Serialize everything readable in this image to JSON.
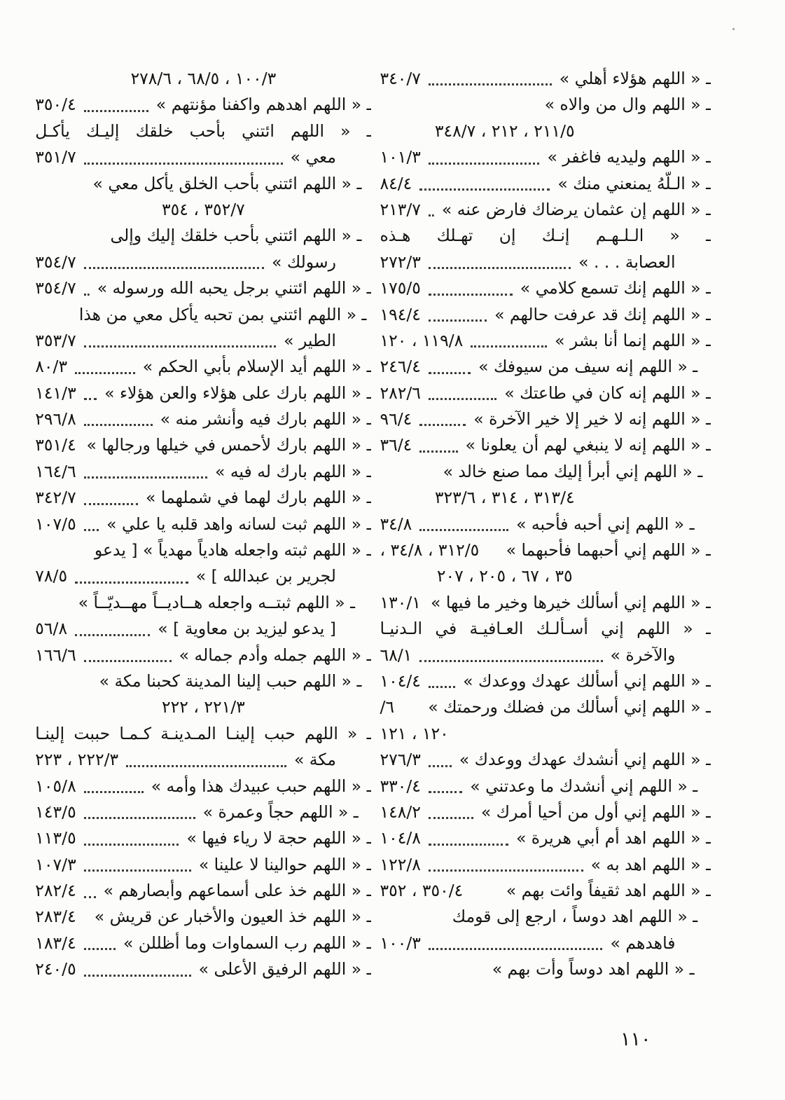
{
  "page": {
    "number": "١١٠"
  },
  "columns": {
    "right": {
      "lines": [
        {
          "text": "ـ « اللهم هؤلاء أهلي »",
          "leaders": true,
          "ref": "٣٤٠/٧"
        },
        {
          "text": "ـ « اللهم وال من والاه »"
        },
        {
          "ref": "٢١١/٥ ، ٢١٢ ، ٣٤٨/٧",
          "align": "center-left"
        },
        {
          "text": "ـ « اللهم وليديه فاغفر »",
          "leaders": true,
          "ref": "١٠١/٣"
        },
        {
          "text": "ـ « الـلَّهُ يمنعني منك »",
          "leaders": true,
          "ref": "٨٤/٤"
        },
        {
          "text": "ـ « اللهم إن عثمان يرضاك فارض عنه »",
          "leaders": true,
          "ref": "٢١٣/٧"
        },
        {
          "text": "ـ « الـلـهـم إنـك إن تهـلك هـذه",
          "justify": true
        },
        {
          "text": "العصابة . . . »",
          "cont": true,
          "leaders": true,
          "ref": "٢٧٢/٣"
        },
        {
          "text": "ـ « اللهم إنك تسمع كلامي »",
          "leaders": true,
          "ref": "١٧٥/٥"
        },
        {
          "text": "ـ « اللهم إنك قد عرفت حالهم »",
          "leaders": true,
          "ref": "١٩٤/٤"
        },
        {
          "text": "ـ « اللهم إنما أنا بشر »",
          "leaders": true,
          "ref": "١١٩/٨ ، ١٢٠"
        },
        {
          "text": "ـ « اللهم إنه سيف من سيوفك »",
          "leaders": true,
          "ref": "٢٤٦/٤",
          "indent": 0.8
        },
        {
          "text": "ـ « اللهم إنه كان في طاعتك »",
          "leaders": true,
          "ref": "٢٨٢/٦"
        },
        {
          "text": "ـ « اللهم إنه لا خير إلا خير الآخرة »",
          "leaders": true,
          "ref": "٩٦/٤"
        },
        {
          "text": "ـ « اللهم إنه لا ينبغي لهم أن يعلونا »",
          "leaders": true,
          "ref": "٣٦/٤"
        },
        {
          "text": "ـ « اللهم إني أبرأ إليك مما صنع خالد »",
          "indent": 0.5
        },
        {
          "ref": "٣١٣/٤ ، ٣١٤ ، ٣٢٣/٦",
          "align": "center-left"
        },
        {
          "text": "ـ « اللهم إني أحبه فأحبه »",
          "leaders": true,
          "ref": "٣٤/٨",
          "indent": 1
        },
        {
          "text": "ـ « اللهم إني أحبهما فأحبهما »",
          "ref": "٣١٢/٥ ، ٣٤/٨ ،"
        },
        {
          "ref": "٣٥ ، ٦٧ ، ٢٠٥ ، ٢٠٧",
          "align": "center-left"
        },
        {
          "text": "ـ « اللهم إني أسألك خيرها وخير ما فيها »",
          "ref": "١٣٠/١"
        },
        {
          "text": "ـ « اللهم إني أسـألـك العـافيـة في الـدنيـا",
          "justify": true
        },
        {
          "text": "والآخرة »",
          "cont": true,
          "leaders": true,
          "ref": "٦٨/١"
        },
        {
          "text": "ـ « اللهم إني أسألك عهدك ووعدك »",
          "leaders": true,
          "ref": "١٠٤/٤"
        },
        {
          "text": "ـ « اللهم إني أسألك من فضلك ورحمتك »",
          "ref": "٦/"
        },
        {
          "ref": "١٢٠ ، ١٢١",
          "align": "left"
        },
        {
          "text": "ـ « اللهم إني أنشدك عهدك ووعدك »",
          "leaders": true,
          "ref": "٢٧٦/٣"
        },
        {
          "text": "ـ « اللهم إني أنشدك ما وعدتني »",
          "leaders": true,
          "ref": "٣٣٠/٤",
          "indent": 0.8
        },
        {
          "text": "ـ « اللهم إني أول من أحيا أمرك »",
          "leaders": true,
          "ref": "١٤٨/٢"
        },
        {
          "text": "ـ « اللهم اهد أم أبي هريرة »",
          "leaders": true,
          "ref": "١٠٤/٨"
        },
        {
          "text": "ـ « اللهم اهد به »",
          "leaders": true,
          "ref": "١٢٢/٨"
        },
        {
          "text": "ـ « اللهم اهد ثقيفاً وائت بهم »",
          "ref": "٣٥٠/٤ ، ٣٥٢"
        },
        {
          "text": "ـ « اللهم اهد دوساً ، ارجع إلى قومك",
          "indent": 0.8
        },
        {
          "text": "فاهدهم »",
          "cont": true,
          "leaders": true,
          "ref": "١٠٠/٣"
        },
        {
          "text": "ـ « اللهم اهد دوساً وأت بهم »",
          "indent": 1
        }
      ]
    },
    "left": {
      "lines": [
        {
          "ref": "١٠٠/٣ ، ٦٨/٥ ، ٢٧٨/٦",
          "align": "center"
        },
        {
          "text": "ـ « اللهم اهدهم واكفنا مؤنتهم »",
          "leaders": true,
          "ref": "٣٥٠/٤"
        },
        {
          "text": "ـ « اللهم ائتني بأحب خلقك إليـك يأكـل",
          "justify": true
        },
        {
          "text": "معي »",
          "cont": true,
          "leaders": true,
          "ref": "٣٥١/٧"
        },
        {
          "text": "ـ « اللهم ائتني بأحب الخلق يأكل معي »",
          "indent": 0.6
        },
        {
          "ref": "٣٥٢/٧ ، ٣٥٤",
          "align": "center"
        },
        {
          "text": "ـ « اللهم ائتني بأحب خلقك إليك وإلى",
          "indent": 0.6
        },
        {
          "text": "رسولك »",
          "cont": true,
          "leaders": true,
          "ref": "٣٥٤/٧"
        },
        {
          "text": "ـ « اللهم ائتني برجل يحبه الله ورسوله »",
          "leaders": true,
          "ref": "٣٥٤/٧"
        },
        {
          "text": "ـ « اللهم ائتني بمن تحبه يأكل معي من هذا",
          "indent": 0.3
        },
        {
          "text": "الطير »",
          "cont": true,
          "leaders": true,
          "ref": "٣٥٣/٧"
        },
        {
          "text": "ـ « اللهم أيد الإسلام بأبي الحكم »",
          "leaders": true,
          "ref": "٨٠/٣"
        },
        {
          "text": "ـ « اللهم بارك على هؤلاء والعن هؤلاء »",
          "leaders": true,
          "ref": "١٤١/٣"
        },
        {
          "text": "ـ « اللهم بارك فيه وأنشر منه »",
          "leaders": true,
          "ref": "٢٩٦/٨"
        },
        {
          "text": "ـ « اللهم بارك لأحمس في خيلها ورجالها »",
          "ref": "٣٥١/٤"
        },
        {
          "text": "ـ « اللهم بارك له فيه »",
          "leaders": true,
          "ref": "١٦٤/٦"
        },
        {
          "text": "ـ « اللهم بارك لهما في شملهما »",
          "leaders": true,
          "ref": "٣٤٢/٧"
        },
        {
          "text": "ـ « اللهم ثبت لسانه واهد قلبه يا علي »",
          "leaders": true,
          "ref": "١٠٧/٥"
        },
        {
          "text": "ـ « اللهم ثبته واجعله هادياً مهدياً » [ يدعو"
        },
        {
          "text": "لجرير بن عبدالله ] »",
          "cont": true,
          "leaders": true,
          "ref": "٧٨/٥"
        },
        {
          "text": "ـ « اللهم ثبتــه واجعله هــاديــاً مهــديّــاً »",
          "indent": 1
        },
        {
          "text": "[ يدعو ليزيد بن معاوية ] »",
          "cont": true,
          "leaders": true,
          "ref": "٥٦/٨"
        },
        {
          "text": "ـ « اللهم جمله وأدم جماله »",
          "leaders": true,
          "ref": "١٦٦/٦"
        },
        {
          "text": "ـ « اللهم حبب إلينا المدينة كحبنا مكة »",
          "indent": 0.6
        },
        {
          "ref": "٢٢١/٣ ، ٢٢٢",
          "align": "center"
        },
        {
          "text": "ـ « اللهم حبب إلينـا المـدينـة كـمـا حببت إلينـا",
          "justify": true
        },
        {
          "text": "مكة »",
          "cont": true,
          "leaders": true,
          "ref": "٢٢٢/٣ ، ٢٢٣"
        },
        {
          "text": "ـ « اللهم حبب عبيدك هذا وأمه »",
          "leaders": true,
          "ref": "١٠٥/٨"
        },
        {
          "text": "ـ « اللهم حجاً وعمرة »",
          "leaders": true,
          "ref": "١٤٣/٥",
          "indent": 0.8
        },
        {
          "text": "ـ « اللهم حجة لا رياء فيها »",
          "leaders": true,
          "ref": "١١٣/٥"
        },
        {
          "text": "ـ « اللهم حوالينا لا علينا »",
          "leaders": true,
          "ref": "١٠٧/٣"
        },
        {
          "text": "ـ « اللهم خذ على أسماعهم وأبصارهم »",
          "leaders": true,
          "ref": "٢٨٢/٤"
        },
        {
          "text": "ـ « اللهم خذ العيون والأخبار عن قريش »",
          "ref": "٢٨٣/٤"
        },
        {
          "text": "ـ « اللهم رب السماوات وما أظللن »",
          "leaders": true,
          "ref": "١٨٣/٤"
        },
        {
          "text": "ـ « اللهم الرفيق الأعلى »",
          "leaders": true,
          "ref": "٢٤٠/٥"
        }
      ]
    }
  }
}
